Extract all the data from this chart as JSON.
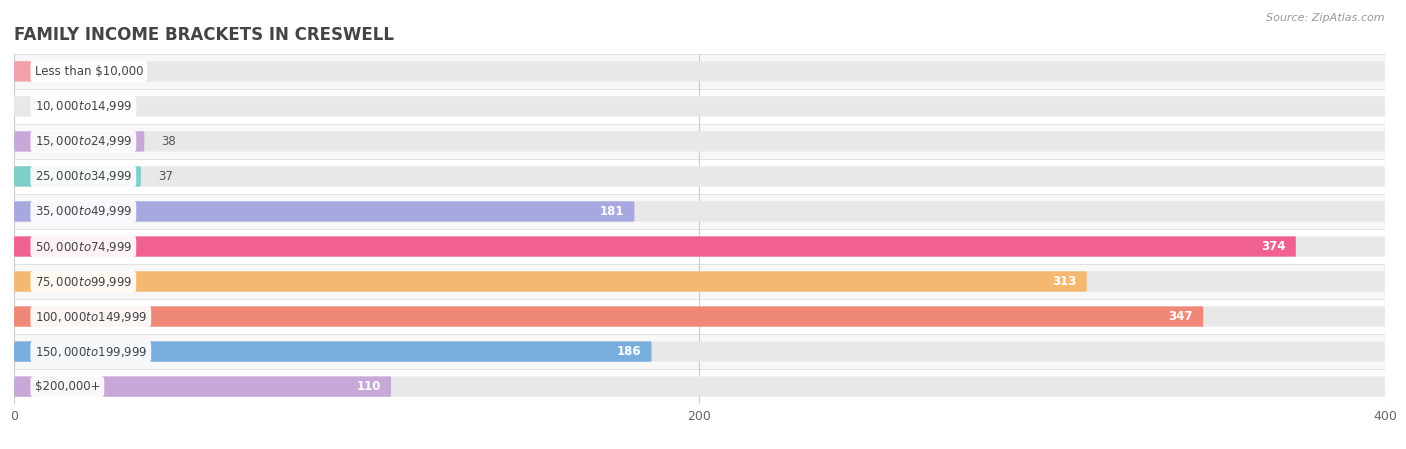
{
  "title": "FAMILY INCOME BRACKETS IN CRESWELL",
  "source": "Source: ZipAtlas.com",
  "categories": [
    "Less than $10,000",
    "$10,000 to $14,999",
    "$15,000 to $24,999",
    "$25,000 to $34,999",
    "$35,000 to $49,999",
    "$50,000 to $74,999",
    "$75,000 to $99,999",
    "$100,000 to $149,999",
    "$150,000 to $199,999",
    "$200,000+"
  ],
  "values": [
    5,
    0,
    38,
    37,
    181,
    374,
    313,
    347,
    186,
    110
  ],
  "bar_colors": [
    "#F4A0A8",
    "#A8C4E0",
    "#C8A8D8",
    "#7ECECA",
    "#A8A8E0",
    "#F06090",
    "#F5B870",
    "#F08878",
    "#78AEDD",
    "#C8A8D8"
  ],
  "track_color": "#e8e8e8",
  "row_bg_colors": [
    "#f7f7f7",
    "#ffffff"
  ],
  "xlim": [
    0,
    400
  ],
  "xticks": [
    0,
    200,
    400
  ],
  "title_fontsize": 12,
  "label_fontsize": 8.5,
  "value_fontsize": 8.5,
  "bar_height": 0.58,
  "label_bg_color": "#ffffff",
  "vline_color": "#cccccc"
}
